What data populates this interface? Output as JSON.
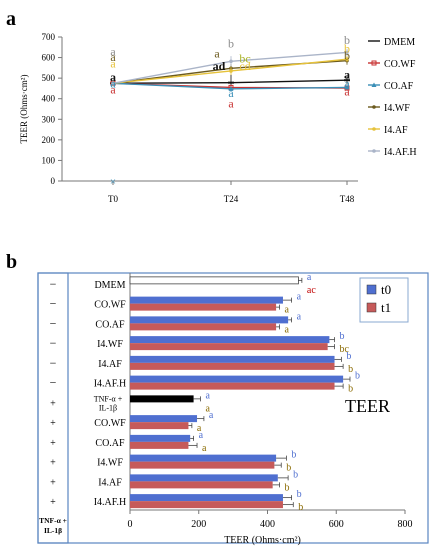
{
  "chart_data": [
    {
      "panel": "a",
      "type": "line",
      "ylabel": "TEER (Ohms·cm²)",
      "ylim": [
        0,
        700
      ],
      "yticks": [
        0,
        100,
        200,
        300,
        400,
        500,
        600,
        700
      ],
      "categories": [
        "T0",
        "T24",
        "T48"
      ],
      "grid": false,
      "legend": "right",
      "series": [
        {
          "name": "DMEM",
          "color": "#111111",
          "marker": "dash",
          "values": [
            475,
            478,
            490
          ],
          "errors": [
            12,
            40,
            18
          ]
        },
        {
          "name": "CO.WF",
          "color": "#c83232",
          "marker": "square",
          "values": [
            475,
            455,
            452
          ],
          "errors": [
            12,
            10,
            10
          ]
        },
        {
          "name": "CO.AF",
          "color": "#3a8fb7",
          "marker": "tri",
          "values": [
            475,
            448,
            455
          ],
          "errors": [
            12,
            10,
            10
          ]
        },
        {
          "name": "I4.WF",
          "color": "#6b5a1e",
          "marker": "dot",
          "values": [
            475,
            548,
            585
          ],
          "errors": [
            12,
            20,
            20
          ]
        },
        {
          "name": "I4.AF",
          "color": "#e6c23a",
          "marker": "dot",
          "values": [
            475,
            535,
            592
          ],
          "errors": [
            12,
            20,
            15
          ]
        },
        {
          "name": "I4.AF.H",
          "color": "#aab4c8",
          "marker": "dot",
          "values": [
            475,
            582,
            625
          ],
          "errors": [
            12,
            25,
            18
          ]
        }
      ],
      "annotations": [
        {
          "col": 0,
          "y": 610,
          "text": "a",
          "color": "#8c8c8c"
        },
        {
          "col": 0,
          "y": 583,
          "text": "a",
          "color": "#6b5a1e"
        },
        {
          "col": 0,
          "y": 552,
          "text": "a",
          "color": "#e6c23a"
        },
        {
          "col": 0,
          "y": 485,
          "text": "a",
          "color": "#111111"
        },
        {
          "col": 0,
          "y": 455,
          "text": "a",
          "color": "#3a8fb7"
        },
        {
          "col": 0,
          "y": 425,
          "text": "a",
          "color": "#c83232"
        },
        {
          "col": 1,
          "y": 648,
          "text": "b",
          "color": "#8c8c8c"
        },
        {
          "col": 1,
          "y": 600,
          "text": "a",
          "color": "#6b5a1e",
          "dx": -14
        },
        {
          "col": 1,
          "y": 576,
          "text": "bc",
          "color": "#aab42a",
          "dx": 14
        },
        {
          "col": 1,
          "y": 540,
          "text": "cd",
          "color": "#e6c23a",
          "dx": 14
        },
        {
          "col": 1,
          "y": 540,
          "text": "ad",
          "color": "#111111",
          "dx": -12
        },
        {
          "col": 1,
          "y": 408,
          "text": "a",
          "color": "#3a8fb7"
        },
        {
          "col": 1,
          "y": 358,
          "text": "a",
          "color": "#c83232"
        },
        {
          "col": 2,
          "y": 665,
          "text": "b",
          "color": "#8c8c8c"
        },
        {
          "col": 2,
          "y": 625,
          "text": "b",
          "color": "#e6c23a"
        },
        {
          "col": 2,
          "y": 590,
          "text": "b",
          "color": "#6b5a1e"
        },
        {
          "col": 2,
          "y": 498,
          "text": "a",
          "color": "#111111"
        },
        {
          "col": 2,
          "y": 455,
          "text": "a",
          "color": "#3a8fb7"
        },
        {
          "col": 2,
          "y": 415,
          "text": "a",
          "color": "#c83232"
        }
      ]
    },
    {
      "panel": "b",
      "type": "bar",
      "orientation": "horizontal",
      "title": "TEER",
      "xlabel": "TEER (Ohms·cm²)",
      "xlim": [
        0,
        800
      ],
      "xticks": [
        0,
        200,
        400,
        600,
        800
      ],
      "legend": "top-right",
      "legend_entries": [
        {
          "name": "t0",
          "color": "#4f6fd0"
        },
        {
          "name": "t1",
          "color": "#c65a5a"
        }
      ],
      "treatment_header": "TNF-α + IL-1β",
      "categories": [
        {
          "label": "DMEM",
          "tnf": "−",
          "t0": 490,
          "e0": 10,
          "t1": null,
          "e1": null,
          "l0": "a",
          "l1": "ac",
          "c0": "#4f6fd0",
          "c1": "#c00000"
        },
        {
          "label": "CO.WF",
          "tnf": "−",
          "t0": 445,
          "e0": 25,
          "t1": 425,
          "e1": 10,
          "l0": "a",
          "l1": "a",
          "c0": "#4f6fd0",
          "c1": "#8a6a00"
        },
        {
          "label": "CO.AF",
          "tnf": "−",
          "t0": 460,
          "e0": 10,
          "t1": 425,
          "e1": 10,
          "l0": "a",
          "l1": "a",
          "c0": "#4f6fd0",
          "c1": "#8a6a00"
        },
        {
          "label": "I4.WF",
          "tnf": "−",
          "t0": 580,
          "e0": 15,
          "t1": 575,
          "e1": 20,
          "l0": "b",
          "l1": "bc",
          "c0": "#4f6fd0",
          "c1": "#8a6a00"
        },
        {
          "label": "I4.AF",
          "tnf": "−",
          "t0": 595,
          "e0": 20,
          "t1": 595,
          "e1": 25,
          "l0": "b",
          "l1": "b",
          "c0": "#4f6fd0",
          "c1": "#8a6a00"
        },
        {
          "label": "I4.AF.H",
          "tnf": "−",
          "t0": 620,
          "e0": 20,
          "t1": 595,
          "e1": 25,
          "l0": "b",
          "l1": "b",
          "c0": "#4f6fd0",
          "c1": "#8a6a00"
        },
        {
          "label": "TNF-α +",
          "label2": "IL-1β",
          "tnf": "+",
          "t0": 185,
          "e0": 20,
          "t1": null,
          "e1": null,
          "l0": "a",
          "l1": "a",
          "c0": "#4f6fd0",
          "c1": "#8a6a00",
          "black": true
        },
        {
          "label": "CO.WF",
          "tnf": "+",
          "t0": 195,
          "e0": 20,
          "t1": 170,
          "e1": 10,
          "l0": "a",
          "l1": "a",
          "c0": "#4f6fd0",
          "c1": "#8a6a00"
        },
        {
          "label": "CO.AF",
          "tnf": "+",
          "t0": 175,
          "e0": 10,
          "t1": 170,
          "e1": 25,
          "l0": "a",
          "l1": "a",
          "c0": "#4f6fd0",
          "c1": "#8a6a00"
        },
        {
          "label": "I4.WF",
          "tnf": "+",
          "t0": 425,
          "e0": 30,
          "t1": 420,
          "e1": 20,
          "l0": "b",
          "l1": "b",
          "c0": "#4f6fd0",
          "c1": "#8a6a00"
        },
        {
          "label": "I4.AF",
          "tnf": "+",
          "t0": 430,
          "e0": 30,
          "t1": 415,
          "e1": 20,
          "l0": "b",
          "l1": "b",
          "c0": "#4f6fd0",
          "c1": "#8a6a00"
        },
        {
          "label": "I4.AF.H",
          "tnf": "+",
          "t0": 445,
          "e0": 25,
          "t1": 445,
          "e1": 30,
          "l0": "b",
          "l1": "b",
          "c0": "#4f6fd0",
          "c1": "#8a6a00"
        }
      ]
    }
  ],
  "panel_labels": [
    "a",
    "b"
  ]
}
